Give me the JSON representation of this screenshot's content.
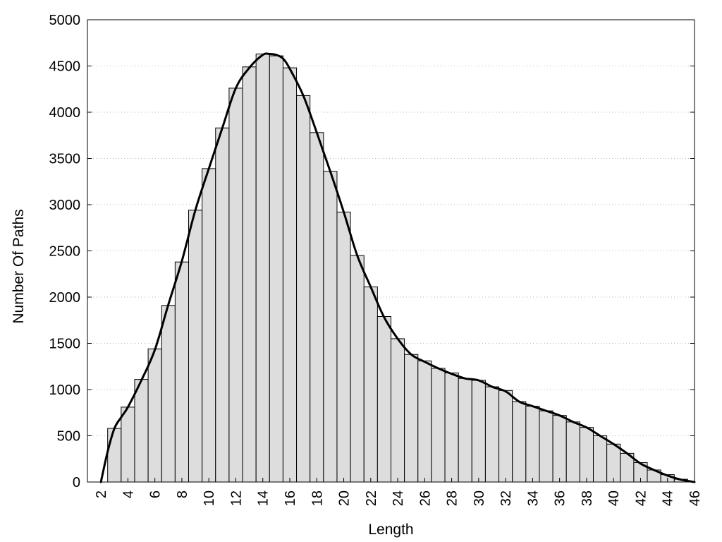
{
  "chart_data": {
    "type": "bar",
    "xlabel": "Length",
    "ylabel": "Number Of Paths",
    "ylim": [
      0,
      5000
    ],
    "y_ticks": [
      "0",
      "500",
      "1000",
      "1500",
      "2000",
      "2500",
      "3000",
      "3500",
      "4000",
      "4500",
      "5000"
    ],
    "x_ticks": [
      "2",
      "4",
      "6",
      "8",
      "10",
      "12",
      "14",
      "16",
      "18",
      "20",
      "22",
      "24",
      "26",
      "28",
      "30",
      "32",
      "34",
      "36",
      "38",
      "40",
      "42",
      "44",
      "46"
    ],
    "grid": "horizontal dotted",
    "bar_color": "#dddddd",
    "line_color": "#000000",
    "categories": [
      3,
      4,
      5,
      6,
      7,
      8,
      9,
      10,
      11,
      12,
      13,
      14,
      15,
      16,
      17,
      18,
      19,
      20,
      21,
      22,
      23,
      24,
      25,
      26,
      27,
      28,
      29,
      30,
      31,
      32,
      33,
      34,
      35,
      36,
      37,
      38,
      39,
      40,
      41,
      42,
      43,
      44,
      45
    ],
    "values": [
      580,
      810,
      1110,
      1440,
      1910,
      2380,
      2940,
      3390,
      3830,
      4260,
      4490,
      4630,
      4610,
      4480,
      4180,
      3780,
      3360,
      2920,
      2450,
      2110,
      1790,
      1550,
      1380,
      1310,
      1230,
      1180,
      1120,
      1100,
      1030,
      990,
      870,
      820,
      770,
      720,
      650,
      590,
      500,
      410,
      310,
      210,
      130,
      80,
      30
    ],
    "smooth_line": {
      "x": [
        2,
        2.5,
        3,
        3.5,
        4,
        5,
        6,
        7,
        8,
        9,
        10,
        11,
        12,
        13,
        14,
        14.5,
        15,
        15.5,
        16,
        17,
        18,
        19,
        20,
        21,
        22,
        23,
        24,
        25,
        26,
        27,
        28,
        29,
        30,
        31,
        32,
        33,
        34,
        35,
        36,
        37,
        38,
        39,
        40,
        41,
        42,
        43,
        44,
        45,
        46
      ],
      "y": [
        0,
        330,
        580,
        700,
        810,
        1100,
        1430,
        1920,
        2390,
        2940,
        3390,
        3830,
        4260,
        4480,
        4620,
        4630,
        4620,
        4580,
        4470,
        4180,
        3780,
        3360,
        2920,
        2450,
        2110,
        1780,
        1550,
        1380,
        1300,
        1230,
        1170,
        1120,
        1100,
        1030,
        980,
        870,
        820,
        770,
        720,
        650,
        590,
        500,
        410,
        310,
        200,
        130,
        70,
        25,
        0
      ]
    }
  }
}
